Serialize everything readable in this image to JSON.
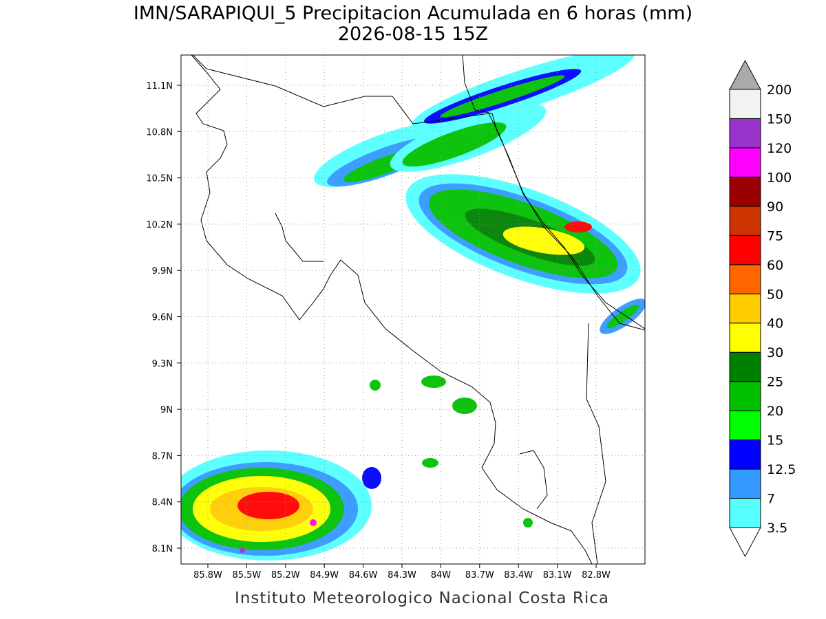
{
  "title": "IMN/SARAPIQUI_5 Precipitacion Acumulada en 6 horas (mm)",
  "subtitle": "2026-08-15 15Z",
  "map": {
    "lat_labels": [
      "11.1N",
      "10.8N",
      "10.5N",
      "10.2N",
      "9.9N",
      "9.6N",
      "9.3N",
      "9N",
      "8.7N",
      "8.4N",
      "8.1N"
    ],
    "lon_labels": [
      "85.8W",
      "85.5W",
      "85.2W",
      "84.9W",
      "84.6W",
      "84.3W",
      "84W",
      "83.7W",
      "83.4W",
      "83.1W",
      "82.8W"
    ]
  },
  "colorbar": {
    "labels": [
      "3.5",
      "7",
      "12.5",
      "15",
      "20",
      "25",
      "30",
      "40",
      "50",
      "60",
      "75",
      "90",
      "100",
      "120",
      "150",
      "200"
    ],
    "colors": [
      "#55ffff",
      "#3399ff",
      "#0000ff",
      "#00ff00",
      "#00c000",
      "#008000",
      "#ffff00",
      "#ffcc00",
      "#ff6600",
      "#ff0000",
      "#cc3300",
      "#990000",
      "#ff00ff",
      "#9933cc",
      "#f2f2f2"
    ],
    "over_color": "#aaaaaa",
    "under_color": "#ffffff"
  },
  "footer": "Instituto Meteorologico Nacional Costa Rica"
}
